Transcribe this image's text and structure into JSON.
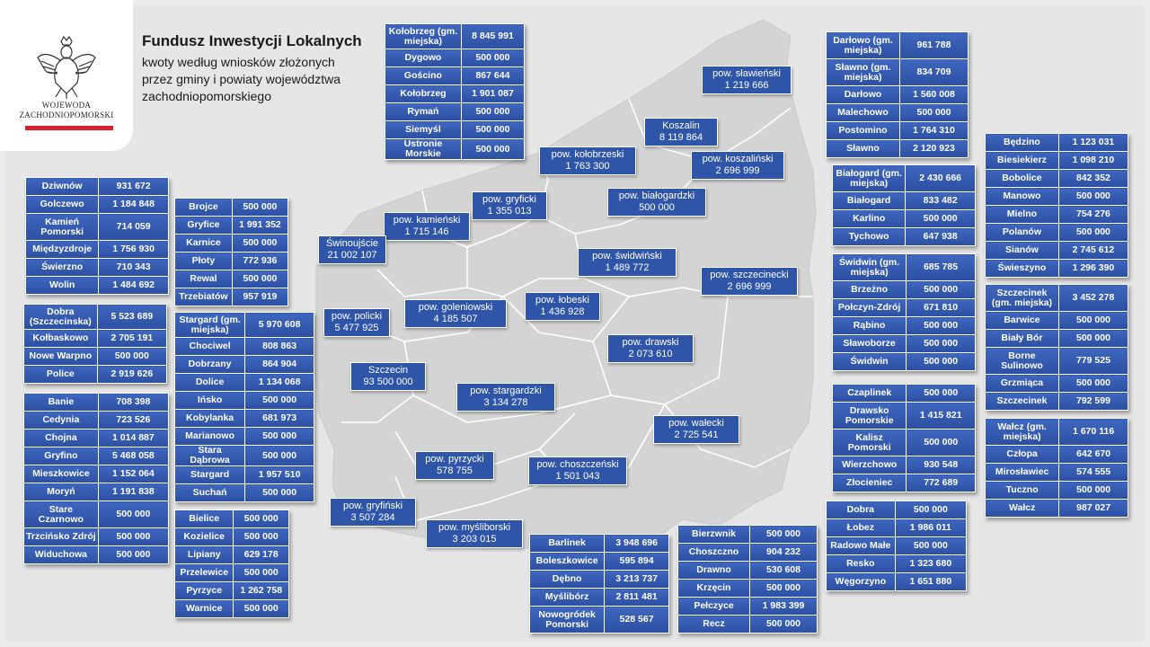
{
  "header": {
    "title": "Fundusz  Inwestycji Lokalnych",
    "subtitle_lines": [
      "kwoty według wniosków złożonych",
      "przez gminy i powiaty województwa",
      "zachodniopomorskiego"
    ]
  },
  "logo": {
    "line1": "WOJEWODA",
    "line2": "ZACHODNIOPOMORSKI"
  },
  "colors": {
    "box": "#2f55a8",
    "accent_bar": "#dc1e2b",
    "map_land": "#d4d4d4",
    "map_border": "#ffffff"
  },
  "map_labels": [
    {
      "name": "pow. sławieński",
      "value": "1 219 666"
    },
    {
      "name": "Koszalin",
      "value": "8 119 864"
    },
    {
      "name": "pow. koszaliński",
      "value": "2 696 999"
    },
    {
      "name": "pow. kołobrzeski",
      "value": "1 763 300"
    },
    {
      "name": "pow. gryficki",
      "value": "1 355 013"
    },
    {
      "name": "pow. białogardzki",
      "value": "500 000"
    },
    {
      "name": "pow. kamieński",
      "value": "1 715 146"
    },
    {
      "name": "Świnoujście",
      "value": "21 002 107"
    },
    {
      "name": "pow. świdwiński",
      "value": "1 489 772"
    },
    {
      "name": "pow. szczecinecki",
      "value": "2 696 999"
    },
    {
      "name": "pow. łobeski",
      "value": "1 436 928"
    },
    {
      "name": "pow. goleniowski",
      "value": "4 185 507"
    },
    {
      "name": "pow. policki",
      "value": "5 477 925"
    },
    {
      "name": "pow. drawski",
      "value": "2 073 610"
    },
    {
      "name": "Szczecin",
      "value": "93 500 000"
    },
    {
      "name": "pow. stargardzki",
      "value": "3 134 278"
    },
    {
      "name": "pow. wałecki",
      "value": "2 725 541"
    },
    {
      "name": "pow. pyrzycki",
      "value": "578 755"
    },
    {
      "name": "pow. choszczeński",
      "value": "1 501 043"
    },
    {
      "name": "pow. gryfiński",
      "value": "3 507 284"
    },
    {
      "name": "pow. myśliborski",
      "value": "3 203 015"
    }
  ],
  "tables": [
    {
      "id": "kolobrzeg",
      "rows": [
        [
          "Kołobrzeg (gm. miejska)",
          "8 845 991"
        ],
        [
          "Dygowo",
          "500 000"
        ],
        [
          "Gościno",
          "867 644"
        ],
        [
          "Kołobrzeg",
          "1 901 087"
        ],
        [
          "Rymań",
          "500 000"
        ],
        [
          "Siemyśl",
          "500 000"
        ],
        [
          "Ustronie Morskie",
          "500 000"
        ]
      ]
    },
    {
      "id": "kamienski",
      "rows": [
        [
          "Dziwnów",
          "931 672"
        ],
        [
          "Golczewo",
          "1 184 848"
        ],
        [
          "Kamień Pomorski",
          "714 059"
        ],
        [
          "Międzyzdroje",
          "1 756 930"
        ],
        [
          "Świerzno",
          "710 343"
        ],
        [
          "Wolin",
          "1 484 692"
        ]
      ]
    },
    {
      "id": "gryficki",
      "rows": [
        [
          "Brojce",
          "500 000"
        ],
        [
          "Gryfice",
          "1 991 352"
        ],
        [
          "Karnice",
          "500 000"
        ],
        [
          "Płoty",
          "772 936"
        ],
        [
          "Rewal",
          "500 000"
        ],
        [
          "Trzebiatów",
          "957 919"
        ]
      ]
    },
    {
      "id": "policki",
      "rows": [
        [
          "Dobra (Szczecinska)",
          "5 523 689"
        ],
        [
          "Kołbaskowo",
          "2 705 191"
        ],
        [
          "Nowe Warpno",
          "500 000"
        ],
        [
          "Police",
          "2 919 626"
        ]
      ]
    },
    {
      "id": "stargardzki",
      "rows": [
        [
          "Stargard (gm. miejska)",
          "5 970 608"
        ],
        [
          "Chociwel",
          "808 863"
        ],
        [
          "Dobrzany",
          "864 904"
        ],
        [
          "Dolice",
          "1 134 068"
        ],
        [
          "Ińsko",
          "500 000"
        ],
        [
          "Kobylanka",
          "681 973"
        ],
        [
          "Marianowo",
          "500 000"
        ],
        [
          "Stara Dąbrowa",
          "500 000"
        ],
        [
          "Stargard",
          "1 957 510"
        ],
        [
          "Suchań",
          "500 000"
        ]
      ]
    },
    {
      "id": "gryfinski",
      "rows": [
        [
          "Banie",
          "708 398"
        ],
        [
          "Cedynia",
          "723 526"
        ],
        [
          "Chojna",
          "1 014 887"
        ],
        [
          "Gryfino",
          "5 468 058"
        ],
        [
          "Mieszkowice",
          "1 152 064"
        ],
        [
          "Moryń",
          "1 191 838"
        ],
        [
          "Stare Czarnowo",
          "500 000"
        ],
        [
          "Trzcińsko Zdrój",
          "500 000"
        ],
        [
          "Widuchowa",
          "500 000"
        ]
      ]
    },
    {
      "id": "pyrzycki",
      "rows": [
        [
          "Bielice",
          "500 000"
        ],
        [
          "Kozielice",
          "500 000"
        ],
        [
          "Lipiany",
          "629 178"
        ],
        [
          "Przelewice",
          "500 000"
        ],
        [
          "Pyrzyce",
          "1 262 758"
        ],
        [
          "Warnice",
          "500 000"
        ]
      ]
    },
    {
      "id": "mysliborski",
      "rows": [
        [
          "Barlinek",
          "3 948 696"
        ],
        [
          "Boleszkowice",
          "595 894"
        ],
        [
          "Dębno",
          "3 213 737"
        ],
        [
          "Myślibórz",
          "2 811 481"
        ],
        [
          "Nowogródek Pomorski",
          "528 567"
        ]
      ]
    },
    {
      "id": "choszczenski",
      "rows": [
        [
          "Bierzwnik",
          "500 000"
        ],
        [
          "Choszczno",
          "904 232"
        ],
        [
          "Drawno",
          "530 608"
        ],
        [
          "Krzęcin",
          "500 000"
        ],
        [
          "Pełczyce",
          "1 983 399"
        ],
        [
          "Recz",
          "500 000"
        ]
      ]
    },
    {
      "id": "lobeski",
      "rows": [
        [
          "Dobra",
          "500 000"
        ],
        [
          "Łobez",
          "1 986 011"
        ],
        [
          "Radowo Małe",
          "500 000"
        ],
        [
          "Resko",
          "1 323 680"
        ],
        [
          "Węgorzyno",
          "1 651 880"
        ]
      ]
    },
    {
      "id": "slawienski",
      "rows": [
        [
          "Darłowo (gm. miejska)",
          "961 788"
        ],
        [
          "Sławno (gm. miejska)",
          "834 709"
        ],
        [
          "Darłowo",
          "1 560 008"
        ],
        [
          "Malechowo",
          "500 000"
        ],
        [
          "Postomino",
          "1 764 310"
        ],
        [
          "Sławno",
          "2 120 923"
        ]
      ]
    },
    {
      "id": "bialogardzki",
      "rows": [
        [
          "Białogard (gm. miejska)",
          "2 430 666"
        ],
        [
          "Białogard",
          "833 482"
        ],
        [
          "Karlino",
          "500 000"
        ],
        [
          "Tychowo",
          "647 938"
        ]
      ]
    },
    {
      "id": "swidwinski",
      "rows": [
        [
          "Świdwin (gm. miejska)",
          "685 785"
        ],
        [
          "Brzeżno",
          "500 000"
        ],
        [
          "Połczyn-Zdrój",
          "671 810"
        ],
        [
          "Rąbino",
          "500 000"
        ],
        [
          "Sławoborze",
          "500 000"
        ],
        [
          "Świdwin",
          "500 000"
        ]
      ]
    },
    {
      "id": "drawski",
      "rows": [
        [
          "Czaplinek",
          "500 000"
        ],
        [
          "Drawsko Pomorskie",
          "1 415 821"
        ],
        [
          "Kalisz Pomorski",
          "500 000"
        ],
        [
          "Wierzchowo",
          "930 548"
        ],
        [
          "Złocieniec",
          "772 689"
        ]
      ]
    },
    {
      "id": "koszalinski",
      "rows": [
        [
          "Będzino",
          "1 123 031"
        ],
        [
          "Biesiekierz",
          "1 098 210"
        ],
        [
          "Bobolice",
          "842 352"
        ],
        [
          "Manowo",
          "500 000"
        ],
        [
          "Mielno",
          "754 276"
        ],
        [
          "Polanów",
          "500 000"
        ],
        [
          "Sianów",
          "2 745 612"
        ],
        [
          "Świeszyno",
          "1 296 390"
        ]
      ]
    },
    {
      "id": "szczecinecki",
      "rows": [
        [
          "Szczecinek (gm. miejska)",
          "3 452 278"
        ],
        [
          "Barwice",
          "500 000"
        ],
        [
          "Biały Bór",
          "500 000"
        ],
        [
          "Borne Sulinowo",
          "779 525"
        ],
        [
          "Grzmiąca",
          "500 000"
        ],
        [
          "Szczecinek",
          "792 599"
        ]
      ]
    },
    {
      "id": "walecki",
      "rows": [
        [
          "Wałcz (gm. miejska)",
          "1 670 116"
        ],
        [
          "Człopa",
          "642 670"
        ],
        [
          "Mirosławiec",
          "574 555"
        ],
        [
          "Tuczno",
          "500 000"
        ],
        [
          "Wałcz",
          "987 027"
        ]
      ]
    }
  ]
}
